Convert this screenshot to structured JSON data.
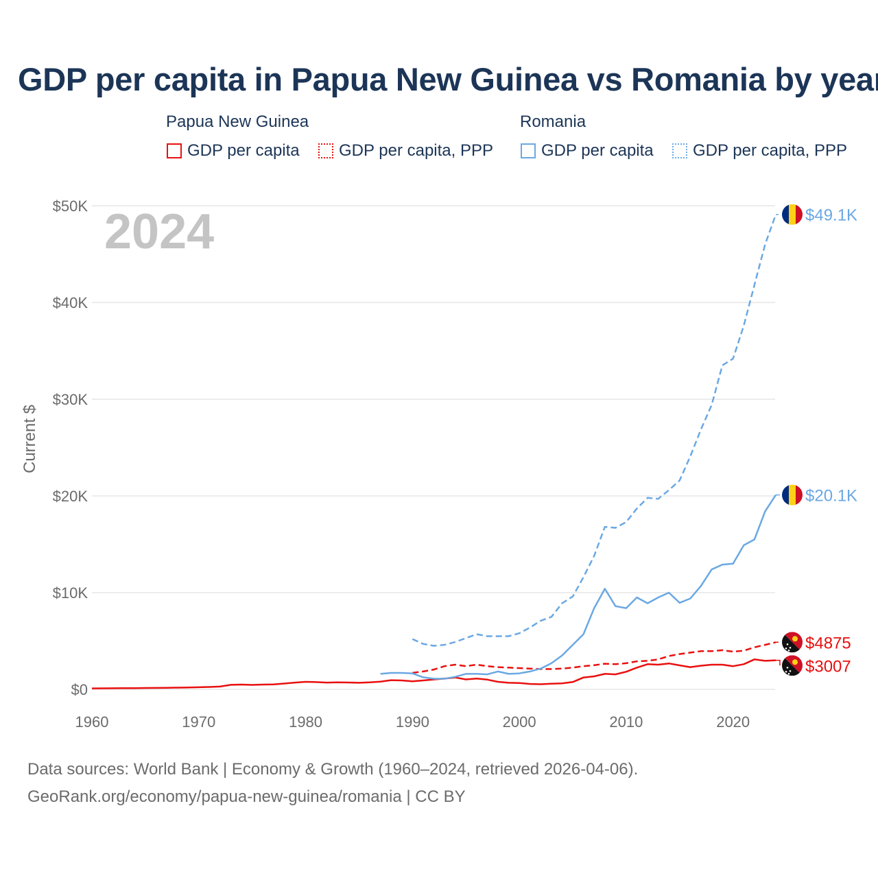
{
  "chart_data": {
    "type": "line",
    "title": "GDP per capita in Papua New Guinea vs Romania by year",
    "year_label": "2024",
    "ylabel": "Current $",
    "xlabel": "",
    "xlim": [
      1960,
      2024
    ],
    "ylim": [
      0,
      50000
    ],
    "x_ticks": [
      "1960",
      "1970",
      "1980",
      "1990",
      "2000",
      "2010",
      "2020"
    ],
    "y_ticks": [
      {
        "value": 0,
        "label": "$0"
      },
      {
        "value": 10000,
        "label": "$10K"
      },
      {
        "value": 20000,
        "label": "$20K"
      },
      {
        "value": 30000,
        "label": "$30K"
      },
      {
        "value": 40000,
        "label": "$40K"
      },
      {
        "value": 50000,
        "label": "$50K"
      }
    ],
    "legend": {
      "groups": [
        {
          "country": "Papua New Guinea",
          "items": [
            "GDP per capita",
            "GDP per capita, PPP"
          ]
        },
        {
          "country": "Romania",
          "items": [
            "GDP per capita",
            "GDP per capita, PPP"
          ]
        }
      ]
    },
    "colors": {
      "png": "#e8100f",
      "rou": "#6aa8e3"
    },
    "series": [
      {
        "name": "Papua New Guinea GDP per capita",
        "country": "Papua New Guinea",
        "color": "#e8100f",
        "dashed": false,
        "end_label": "$3007",
        "flag": "png",
        "start_year": 1960,
        "values": [
          100,
          105,
          110,
          120,
          130,
          140,
          150,
          165,
          180,
          195,
          220,
          250,
          290,
          470,
          500,
          460,
          500,
          520,
          600,
          700,
          780,
          750,
          700,
          720,
          710,
          680,
          720,
          800,
          950,
          920,
          830,
          920,
          1020,
          1120,
          1230,
          1030,
          1120,
          1010,
          780,
          680,
          660,
          560,
          530,
          590,
          620,
          760,
          1230,
          1350,
          1600,
          1550,
          1820,
          2250,
          2600,
          2550,
          2680,
          2480,
          2300,
          2450,
          2550,
          2550,
          2400,
          2600,
          3100,
          2950,
          3007
        ]
      },
      {
        "name": "Papua New Guinea GDP per capita, PPP",
        "country": "Papua New Guinea",
        "color": "#e8100f",
        "dashed": true,
        "end_label": "$4875",
        "flag": "png",
        "start_year": 1990,
        "values": [
          1700,
          1850,
          2050,
          2400,
          2550,
          2400,
          2550,
          2400,
          2300,
          2250,
          2200,
          2150,
          2100,
          2100,
          2150,
          2250,
          2400,
          2500,
          2650,
          2600,
          2700,
          2900,
          2950,
          3100,
          3450,
          3650,
          3800,
          3950,
          3950,
          4050,
          3900,
          4000,
          4350,
          4600,
          4875
        ]
      },
      {
        "name": "Romania GDP per capita",
        "country": "Romania",
        "color": "#6aa8e3",
        "dashed": false,
        "end_label": "$20.1K",
        "flag": "rou",
        "start_year": 1987,
        "values": [
          1600,
          1700,
          1700,
          1650,
          1250,
          1100,
          1100,
          1300,
          1600,
          1600,
          1550,
          1850,
          1600,
          1650,
          1850,
          2150,
          2700,
          3500,
          4600,
          5700,
          8400,
          10400,
          8600,
          8400,
          9500,
          8900,
          9500,
          10000,
          8950,
          9400,
          10700,
          12400,
          12900,
          13000,
          14900,
          15500,
          18400,
          20100
        ]
      },
      {
        "name": "Romania GDP per capita, PPP",
        "country": "Romania",
        "color": "#6aa8e3",
        "dashed": true,
        "end_label": "$49.1K",
        "flag": "rou",
        "start_year": 1990,
        "values": [
          5200,
          4700,
          4500,
          4600,
          4900,
          5300,
          5700,
          5500,
          5500,
          5500,
          5800,
          6400,
          7100,
          7500,
          8900,
          9600,
          11600,
          13800,
          16800,
          16700,
          17300,
          18700,
          19800,
          19700,
          20600,
          21600,
          24100,
          26900,
          29400,
          33500,
          34200,
          37600,
          41800,
          46000,
          49100
        ]
      }
    ]
  },
  "footer": {
    "line1": "Data sources: World Bank | Economy & Growth (1960–2024, retrieved 2026-04-06).",
    "line2": "GeoRank.org/economy/papua-new-guinea/romania | CC BY"
  }
}
